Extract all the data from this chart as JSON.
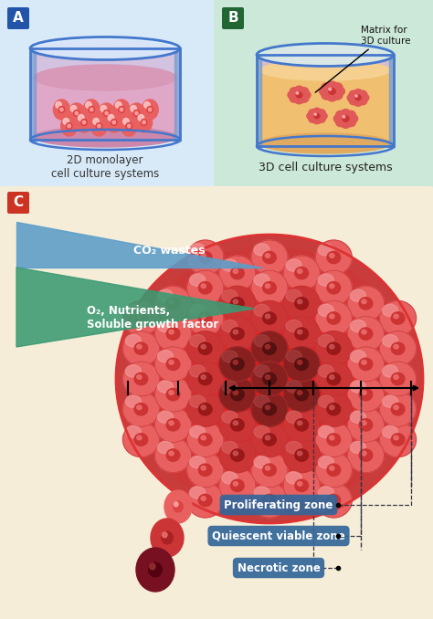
{
  "bg_color": "#f5edd8",
  "panel_A_bg": "#d8eaf8",
  "panel_B_bg": "#cce8d8",
  "panel_C_bg": "#f5edd8",
  "label_A_color": "#2255aa",
  "label_B_color": "#226633",
  "label_C_color": "#cc3322",
  "text_A": "2D monolayer\ncell culture systems",
  "text_B": "3D cell culture systems",
  "text_matrix": "Matrix for\n3D culture",
  "text_co2": "CO₂ wastes",
  "text_o2": "O₂, Nutrients,\nSoluble growth factor",
  "text_prolif": "Proliferating zone",
  "text_quiesc": "Quiescent viable zone",
  "text_necrotic": "Necrotic zone",
  "zone_label_color": "#336699",
  "blue_wedge_color": "#5b9dc9",
  "green_wedge_color": "#3a9a72",
  "dashed_line_color": "#333344",
  "cell_outer_prolif": "#e86666",
  "cell_outer_quies": "#cc3344",
  "cell_outer_necrotic": "#771122",
  "dish_edge_color": "#4477cc",
  "liquid_color": "#e8b0cc",
  "gel_color": "#f0c080"
}
